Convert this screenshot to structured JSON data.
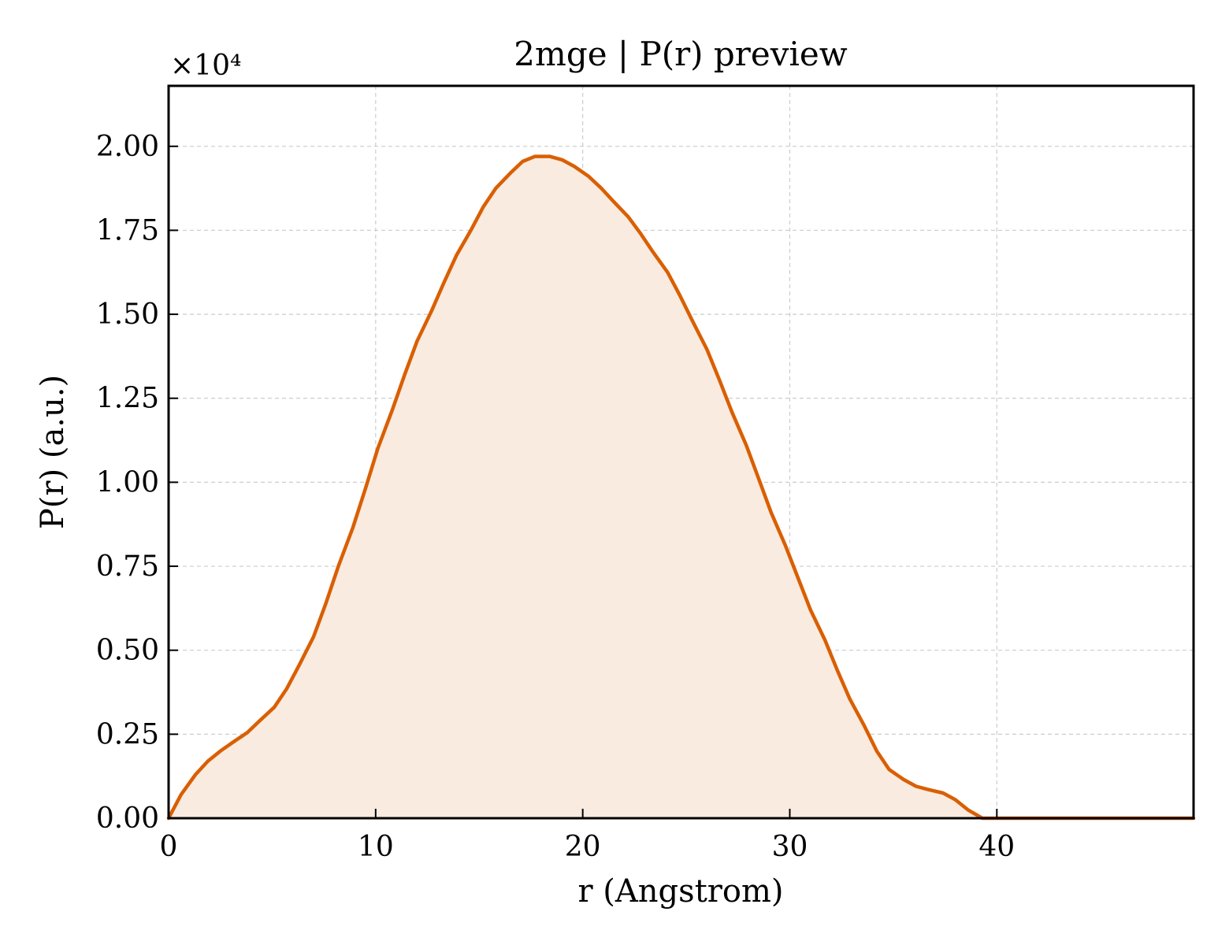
{
  "chart_data": {
    "type": "area",
    "title": "2mge | P(r) preview",
    "xlabel": "r (Angstrom)",
    "ylabel": "P(r) (a.u.)",
    "y_multiplier": "×10⁴",
    "xlim": [
      0,
      49.5
    ],
    "ylim": [
      0,
      2.18
    ],
    "x_ticks": [
      0,
      10,
      20,
      30,
      40
    ],
    "x_tick_labels": [
      "0",
      "10",
      "20",
      "30",
      "40"
    ],
    "y_ticks": [
      0,
      0.25,
      0.5,
      0.75,
      1.0,
      1.25,
      1.5,
      1.75,
      2.0
    ],
    "y_tick_labels": [
      "0.00",
      "0.25",
      "0.50",
      "0.75",
      "1.00",
      "1.25",
      "1.50",
      "1.75",
      "2.00"
    ],
    "grid": true,
    "line_color": "#d95f02",
    "fill_color": "#f9ebe0",
    "series": [
      {
        "x": [
          0,
          0.6,
          1.3,
          1.9,
          2.5,
          3.2,
          3.8,
          4.4,
          5.1,
          5.7,
          6.3,
          7.0,
          7.6,
          8.2,
          8.9,
          9.5,
          10.1,
          10.8,
          11.4,
          12.0,
          12.7,
          13.3,
          13.9,
          14.6,
          15.2,
          15.8,
          16.5,
          17.1,
          17.7,
          18.4,
          19.0,
          19.6,
          20.3,
          20.9,
          21.5,
          22.2,
          22.8,
          23.4,
          24.1,
          24.7,
          25.3,
          26.0,
          26.6,
          27.2,
          27.9,
          28.5,
          29.1,
          29.8,
          30.4,
          31.0,
          31.7,
          32.3,
          32.9,
          33.6,
          34.2,
          34.8,
          35.5,
          36.1,
          36.7,
          37.4,
          38.0,
          38.6,
          39.3,
          39.9,
          40.5,
          41.2,
          41.8,
          42.4,
          43.1,
          43.7,
          44.3,
          45.0,
          45.6,
          46.2,
          46.9,
          47.5,
          48.1,
          48.8,
          49.5
        ],
        "y": [
          0.0,
          0.07,
          0.13,
          0.17,
          0.2,
          0.23,
          0.255,
          0.29,
          0.33,
          0.385,
          0.455,
          0.54,
          0.64,
          0.75,
          0.865,
          0.98,
          1.1,
          1.215,
          1.32,
          1.42,
          1.51,
          1.595,
          1.675,
          1.75,
          1.82,
          1.875,
          1.92,
          1.955,
          1.97,
          1.97,
          1.96,
          1.94,
          1.91,
          1.875,
          1.835,
          1.79,
          1.74,
          1.685,
          1.625,
          1.555,
          1.48,
          1.395,
          1.305,
          1.21,
          1.11,
          1.01,
          0.91,
          0.81,
          0.715,
          0.62,
          0.53,
          0.44,
          0.355,
          0.275,
          0.2,
          0.145,
          0.115,
          0.095,
          0.085,
          0.075,
          0.055,
          0.025,
          0.0,
          0.0,
          0.0,
          0.0,
          0.0,
          0.0,
          0.0,
          0.0,
          0.0,
          0.0,
          0.0,
          0.0,
          0.0,
          0.0,
          0.0,
          0.0,
          0.0
        ]
      }
    ]
  }
}
